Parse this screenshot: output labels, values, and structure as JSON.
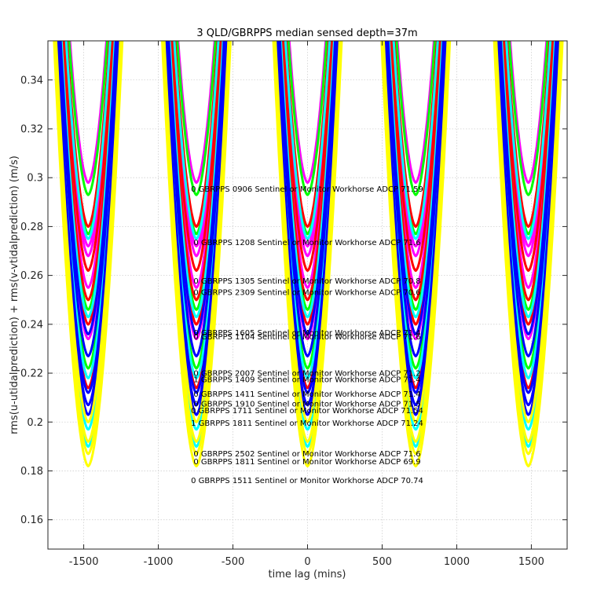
{
  "chart_data": {
    "type": "line",
    "title": "3 QLD/GBRPPS median sensed depth=37m",
    "xlabel": "time lag (mins)",
    "ylabel": "rms(u-utidalprediction) + rms(v-vtidalprediction) (m/s)",
    "xlim": [
      -1740,
      1740
    ],
    "ylim": [
      0.148,
      0.356
    ],
    "xticks": [
      -1500,
      -1000,
      -500,
      0,
      500,
      1000,
      1500
    ],
    "xtick_labels": [
      "-1500",
      "-1000",
      "-500",
      "0",
      "500",
      "1000",
      "1500"
    ],
    "yticks": [
      0.16,
      0.18,
      0.2,
      0.22,
      0.24,
      0.26,
      0.28,
      0.3,
      0.32,
      0.34
    ],
    "ytick_labels": [
      "0.16",
      "0.18",
      "0.2",
      "0.22",
      "0.24",
      "0.26",
      "0.28",
      "0.3",
      "0.32",
      "0.34"
    ],
    "grid": true,
    "curve_minima_lags": [
      -1470,
      -745,
      0,
      725,
      1480
    ],
    "series": [
      {
        "color": "#ff00ff",
        "min": 0.298
      },
      {
        "color": "#ff00ff",
        "min": 0.272
      },
      {
        "color": "#ff00ff",
        "min": 0.268
      },
      {
        "color": "#ff00ff",
        "min": 0.255
      },
      {
        "color": "#ff00ff",
        "min": 0.234
      },
      {
        "color": "#00ff00",
        "min": 0.293
      },
      {
        "color": "#00ff00",
        "min": 0.277
      },
      {
        "color": "#00ff00",
        "min": 0.246
      },
      {
        "color": "#00ff00",
        "min": 0.222
      },
      {
        "color": "#ff0000",
        "min": 0.28
      },
      {
        "color": "#ff0000",
        "min": 0.262
      },
      {
        "color": "#ff0000",
        "min": 0.25
      },
      {
        "color": "#ff0000",
        "min": 0.24
      },
      {
        "color": "#ff0000",
        "min": 0.214
      },
      {
        "color": "#00ffff",
        "min": 0.275
      },
      {
        "color": "#00ffff",
        "min": 0.243
      },
      {
        "color": "#00ffff",
        "min": 0.218
      },
      {
        "color": "#00ffff",
        "min": 0.197
      },
      {
        "color": "#00ffff",
        "min": 0.19
      },
      {
        "color": "#0000ff",
        "min": 0.236
      },
      {
        "color": "#0000ff",
        "min": 0.227
      },
      {
        "color": "#0000ff",
        "min": 0.212
      },
      {
        "color": "#0000ff",
        "min": 0.207
      },
      {
        "color": "#0000ff",
        "min": 0.203
      },
      {
        "color": "#ffff00",
        "min": 0.2
      },
      {
        "color": "#ffff00",
        "min": 0.192
      },
      {
        "color": "#ffff00",
        "min": 0.187
      },
      {
        "color": "#ffff00",
        "min": 0.182
      }
    ],
    "annotations": [
      {
        "text": "0 GBRPPS 0906 Sentinel or Monitor Workhorse ADCP 71.59",
        "y": 0.2954
      },
      {
        "text": "0 GBRPPS 1208 Sentinel or Monitor Workhorse ADCP 71.6",
        "y": 0.2736
      },
      {
        "text": "0 GBRPPS 1305 Sentinel or Monitor Workhorse ADCP 70.8",
        "y": 0.2578
      },
      {
        "text": "0 GBRPPS 2309 Sentinel or Monitor Workhorse ADCP 70.6",
        "y": 0.2531
      },
      {
        "text": "0 GBRPPS 1605 Sentinel or Monitor Workhorse ADCP 71.4",
        "y": 0.2365
      },
      {
        "text": "0 GBRPPS 1104 Sentinel or Monitor Workhorse ADCP 71.6",
        "y": 0.2349
      },
      {
        "text": "0 GBRPPS 2007 Sentinel or Monitor Workhorse ADCP 71.2",
        "y": 0.22
      },
      {
        "text": "1 GBRPPS 1409 Sentinel or Monitor Workhorse ADCP 71.4",
        "y": 0.2174
      },
      {
        "text": "0 GBRPPS 1411 Sentinel or Monitor Workhorse ADCP 71.4",
        "y": 0.2115
      },
      {
        "text": "0 GBRPPS 1910 Sentinel or Monitor Workhorse ADCP 71.5",
        "y": 0.2075
      },
      {
        "text": "0 GBRPPS 1711 Sentinel or Monitor Workhorse ADCP 71.54",
        "y": 0.2047
      },
      {
        "text": "1 GBRPPS 1811 Sentinel or Monitor Workhorse ADCP 71.24",
        "y": 0.1996
      },
      {
        "text": "0 GBRPPS 2502 Sentinel or Monitor Workhorse ADCP 71.6",
        "y": 0.187
      },
      {
        "text": "0 GBRPPS 1811 Sentinel or Monitor Workhorse ADCP 69.9",
        "y": 0.1839
      },
      {
        "text": "0 GBRPPS 1511 Sentinel or Monitor Workhorse ADCP 70.74",
        "y": 0.1762
      }
    ]
  }
}
